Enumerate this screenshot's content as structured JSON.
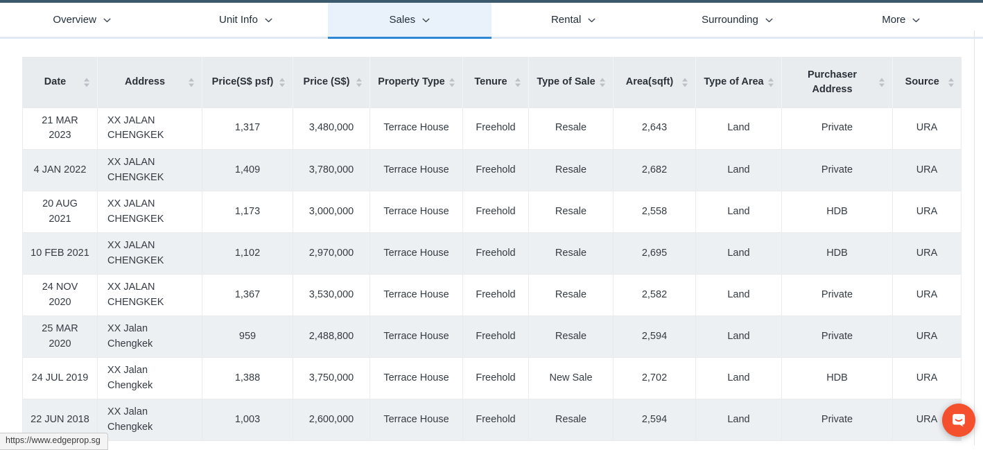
{
  "nav": {
    "tabs": [
      {
        "label": "Overview",
        "active": false
      },
      {
        "label": "Unit Info",
        "active": false
      },
      {
        "label": "Sales",
        "active": true
      },
      {
        "label": "Rental",
        "active": false
      },
      {
        "label": "Surrounding",
        "active": false
      },
      {
        "label": "More",
        "active": false
      }
    ]
  },
  "table": {
    "columns": [
      "Date",
      "Address",
      "Price(S$ psf)",
      "Price (S$)",
      "Property Type",
      "Tenure",
      "Type of Sale",
      "Area(sqft)",
      "Type of Area",
      "Purchaser Address",
      "Source"
    ],
    "rows": [
      [
        "21 MAR 2023",
        "XX JALAN CHENGKEK",
        "1,317",
        "3,480,000",
        "Terrace House",
        "Freehold",
        "Resale",
        "2,643",
        "Land",
        "Private",
        "URA"
      ],
      [
        "4 JAN 2022",
        "XX JALAN CHENGKEK",
        "1,409",
        "3,780,000",
        "Terrace House",
        "Freehold",
        "Resale",
        "2,682",
        "Land",
        "Private",
        "URA"
      ],
      [
        "20 AUG 2021",
        "XX JALAN CHENGKEK",
        "1,173",
        "3,000,000",
        "Terrace House",
        "Freehold",
        "Resale",
        "2,558",
        "Land",
        "HDB",
        "URA"
      ],
      [
        "10 FEB 2021",
        "XX JALAN CHENGKEK",
        "1,102",
        "2,970,000",
        "Terrace House",
        "Freehold",
        "Resale",
        "2,695",
        "Land",
        "HDB",
        "URA"
      ],
      [
        "24 NOV 2020",
        "XX JALAN CHENGKEK",
        "1,367",
        "3,530,000",
        "Terrace House",
        "Freehold",
        "Resale",
        "2,582",
        "Land",
        "Private",
        "URA"
      ],
      [
        "25 MAR 2020",
        "XX Jalan Chengkek",
        "959",
        "2,488,800",
        "Terrace House",
        "Freehold",
        "Resale",
        "2,594",
        "Land",
        "Private",
        "URA"
      ],
      [
        "24 JUL 2019",
        "XX Jalan Chengkek",
        "1,388",
        "3,750,000",
        "Terrace House",
        "Freehold",
        "New Sale",
        "2,702",
        "Land",
        "HDB",
        "URA"
      ],
      [
        "22 JUN 2018",
        "XX Jalan Chengkek",
        "1,003",
        "2,600,000",
        "Terrace House",
        "Freehold",
        "Resale",
        "2,594",
        "Land",
        "Private",
        "URA"
      ]
    ]
  },
  "statusbar": {
    "url": "https://www.edgeprop.sg"
  },
  "chat": {
    "icon": "messenger-chat-icon",
    "color": "#f4502e"
  },
  "colors": {
    "topbar": "#3b5a6e",
    "active_tab_underline": "#2e87d5",
    "active_tab_bg": "#e9f2fb",
    "header_bg": "#e9ecef",
    "stripe_bg": "#edf0f3"
  }
}
